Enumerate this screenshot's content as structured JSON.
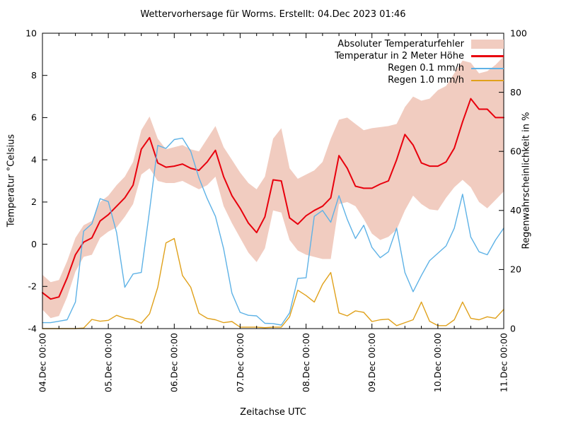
{
  "title": "Wettervorhersage für Worms. Erstellt: 04.Dec 2023 01:46",
  "axes": {
    "x_label": "Zeitachse UTC",
    "y_left_label": "Temperatur °Celsius",
    "y_right_label": "Regenwahrscheinlichkeit in %"
  },
  "colors": {
    "temperature_line": "#e8000d",
    "error_band": "#f1ccc0",
    "rain_01": "#5eb2e6",
    "rain_10": "#e0a11b",
    "axis": "#000000",
    "background": "#ffffff"
  },
  "chart_data": {
    "type": "line",
    "title": "Wettervorhersage für Worms. Erstellt: 04.Dec 2023 01:46",
    "xlabel": "Zeitachse UTC",
    "x_unit": "hours since 04.Dec 2023 00:00 UTC",
    "x_total_hours": 168,
    "x_step_hours": 3,
    "x_ticks_major": [
      "04.Dec 00:00",
      "05.Dec 00:00",
      "06.Dec 00:00",
      "07.Dec 00:00",
      "08.Dec 00:00",
      "09.Dec 00:00",
      "10.Dec 00:00",
      "11.Dec 00:00"
    ],
    "x_minor_tick_hours": 6,
    "grid": false,
    "legend_position": "top-right-inside",
    "y_left": {
      "label": "Temperatur °Celsius",
      "min": -4,
      "max": 10,
      "ticks": [
        -4,
        -2,
        0,
        2,
        4,
        6,
        8,
        10
      ]
    },
    "y_right": {
      "label": "Regenwahrscheinlichkeit in %",
      "min": 0,
      "max": 100,
      "ticks": [
        0,
        20,
        40,
        60,
        80,
        100
      ]
    },
    "series": [
      {
        "name": "Absoluter Temperaturfehler",
        "type": "band",
        "axis": "left",
        "color": "#f1ccc0",
        "low": [
          -3.1,
          -3.5,
          -3.4,
          -2.5,
          -1.3,
          -0.6,
          -0.5,
          0.3,
          0.6,
          0.8,
          1.3,
          1.9,
          3.3,
          3.6,
          3.0,
          2.9,
          2.9,
          3.0,
          2.8,
          2.6,
          2.8,
          3.2,
          1.8,
          1.0,
          0.3,
          -0.4,
          -0.85,
          -0.2,
          1.6,
          1.5,
          0.2,
          -0.3,
          -0.5,
          -0.6,
          -0.7,
          -0.7,
          1.9,
          2.0,
          1.8,
          1.2,
          0.5,
          0.2,
          0.35,
          0.7,
          1.6,
          2.3,
          1.9,
          1.65,
          1.6,
          2.2,
          2.7,
          3.05,
          2.7,
          2.0,
          1.7,
          2.1,
          2.5
        ],
        "high": [
          -1.45,
          -1.8,
          -1.7,
          -0.8,
          0.3,
          0.9,
          1.1,
          2.0,
          2.3,
          2.8,
          3.2,
          3.9,
          5.4,
          6.05,
          5.0,
          4.5,
          4.6,
          4.7,
          4.5,
          4.4,
          5.0,
          5.6,
          4.6,
          4.0,
          3.4,
          2.9,
          2.6,
          3.2,
          5.0,
          5.5,
          3.6,
          3.1,
          3.3,
          3.5,
          3.9,
          5.0,
          5.9,
          6.0,
          5.7,
          5.4,
          5.5,
          5.55,
          5.6,
          5.7,
          6.5,
          7.0,
          6.8,
          6.9,
          7.3,
          7.5,
          8.1,
          8.7,
          8.6,
          8.1,
          8.2,
          8.5,
          8.9
        ]
      },
      {
        "name": "Temperatur in 2 Meter Höhe",
        "type": "line",
        "axis": "left",
        "color": "#e8000d",
        "width": 2,
        "values": [
          -2.3,
          -2.6,
          -2.5,
          -1.6,
          -0.5,
          0.1,
          0.3,
          1.1,
          1.4,
          1.8,
          2.2,
          2.8,
          4.5,
          5.05,
          3.85,
          3.65,
          3.7,
          3.8,
          3.6,
          3.5,
          3.9,
          4.45,
          3.2,
          2.3,
          1.7,
          1.0,
          0.55,
          1.3,
          3.05,
          3.0,
          1.25,
          0.95,
          1.35,
          1.6,
          1.8,
          2.2,
          4.2,
          3.6,
          2.75,
          2.65,
          2.65,
          2.85,
          3.0,
          4.0,
          5.2,
          4.7,
          3.85,
          3.7,
          3.7,
          3.9,
          4.55,
          5.8,
          6.9,
          6.4,
          6.4,
          6.0,
          6.0
        ]
      },
      {
        "name": "Regen 0.1 mm/h",
        "type": "line",
        "axis": "right",
        "color": "#5eb2e6",
        "width": 1.4,
        "values": [
          2,
          2,
          2.5,
          3,
          9,
          33,
          35.5,
          44,
          43,
          32.5,
          14,
          18.5,
          19,
          40,
          62,
          61,
          64,
          64.5,
          60,
          51,
          44,
          38,
          27,
          12,
          5.5,
          4.5,
          4.3,
          1.8,
          1.7,
          1.2,
          5.3,
          17,
          17.2,
          38,
          40,
          36,
          45,
          37,
          30.5,
          35,
          27.5,
          24,
          26,
          34,
          19,
          12.5,
          18,
          23,
          25.5,
          28,
          34,
          45.5,
          31,
          26,
          25,
          30,
          34
        ]
      },
      {
        "name": "Regen 1.0 mm/h",
        "type": "line",
        "axis": "right",
        "color": "#e0a11b",
        "width": 1.4,
        "values": [
          0,
          0,
          0,
          0,
          0,
          0.2,
          3.1,
          2.5,
          2.8,
          4.5,
          3.5,
          3.1,
          1.8,
          5,
          14,
          29,
          30.5,
          18,
          14,
          5.2,
          3.5,
          3,
          2,
          2.4,
          0.5,
          0.5,
          0.5,
          0.3,
          0.5,
          0.5,
          4,
          13,
          11.2,
          9,
          15,
          19,
          5.3,
          4.3,
          6,
          5.5,
          2.4,
          3,
          3.2,
          1,
          2,
          3,
          9,
          2.5,
          1,
          1,
          3,
          9,
          3.5,
          3,
          4,
          3.5,
          6.5
        ]
      }
    ]
  }
}
